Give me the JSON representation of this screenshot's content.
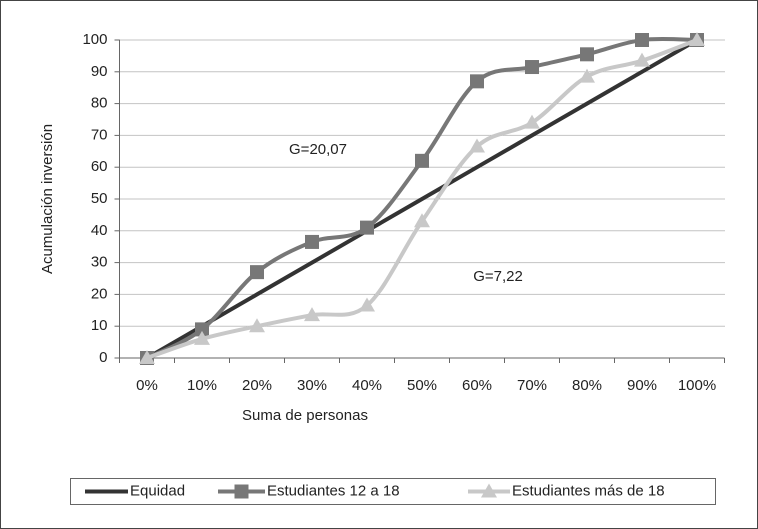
{
  "chart_data": {
    "type": "line",
    "x_label": "Suma de personas",
    "y_label": "Acumulación inversión",
    "categories": [
      "0%",
      "10%",
      "20%",
      "30%",
      "40%",
      "50%",
      "60%",
      "70%",
      "80%",
      "90%",
      "100%"
    ],
    "series": [
      {
        "name": "Equidad",
        "color": "#333333",
        "marker": "none",
        "values": [
          0,
          10,
          20,
          30,
          40,
          50,
          60,
          70,
          80,
          90,
          100
        ]
      },
      {
        "name": "Estudiantes 12 a 18",
        "color": "#777777",
        "marker": "square",
        "values": [
          0,
          9,
          27,
          36.5,
          41,
          62,
          87,
          91.5,
          95.5,
          100,
          100
        ]
      },
      {
        "name": "Estudiantes más de 18",
        "color": "#c8c8c8",
        "marker": "triangle",
        "values": [
          0,
          6,
          10,
          13.5,
          16.5,
          43,
          66.5,
          74,
          88.5,
          93.5,
          100
        ]
      }
    ],
    "annotations": [
      "G=20,07",
      "G=7,22"
    ],
    "ylim": [
      0,
      100
    ],
    "yticks": [
      0,
      10,
      20,
      30,
      40,
      50,
      60,
      70,
      80,
      90,
      100
    ],
    "grid": true,
    "legend": "bottom"
  }
}
